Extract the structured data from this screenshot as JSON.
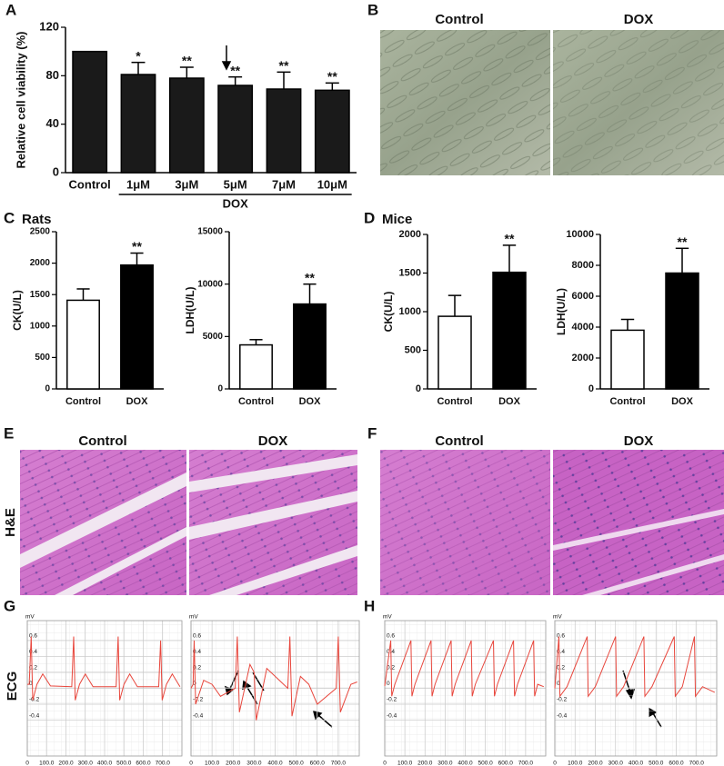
{
  "panels": [
    {
      "letter": "A"
    },
    {
      "letter": "B",
      "titles": [
        "Control",
        "DOX"
      ]
    },
    {
      "letter": "C",
      "title": "Rats"
    },
    {
      "letter": "D",
      "title": "Mice"
    },
    {
      "letter": "E",
      "titles": [
        "Control",
        "DOX"
      ],
      "side_label": "H&E"
    },
    {
      "letter": "F",
      "titles": [
        "Control",
        "DOX"
      ]
    },
    {
      "letter": "G",
      "side_label": "ECG"
    },
    {
      "letter": "H"
    }
  ],
  "chart_data": [
    {
      "type": "bar",
      "y_label": "Relative cell viability (%)",
      "categories": [
        "Control",
        "1μM",
        "3μM",
        "5μM",
        "7μM",
        "10μM"
      ],
      "values": [
        100,
        81,
        78,
        72,
        69,
        68
      ],
      "errors": [
        null,
        10,
        9,
        7,
        14,
        6
      ],
      "significance": [
        null,
        "*",
        "**",
        "**",
        "**",
        "**"
      ],
      "group_label": "DOX",
      "colors": [
        "#1a1a1a",
        "#1a1a1a",
        "#1a1a1a",
        "#1a1a1a",
        "#1a1a1a",
        "#1a1a1a"
      ],
      "ylim": [
        0,
        120
      ],
      "yticks": [
        0,
        40,
        80,
        120
      ]
    },
    {
      "type": "bar",
      "y_label": "CK(U/L)",
      "categories": [
        "Control",
        "DOX"
      ],
      "values": [
        1410,
        1970
      ],
      "errors": [
        180,
        190
      ],
      "significance": [
        null,
        "**"
      ],
      "colors": [
        "#ffffff",
        "#000000"
      ],
      "ylim": [
        0,
        2500
      ],
      "yticks": [
        0,
        500,
        1000,
        1500,
        2000,
        2500
      ]
    },
    {
      "type": "bar",
      "y_label": "LDH(U/L)",
      "categories": [
        "Control",
        "DOX"
      ],
      "values": [
        4200,
        8100
      ],
      "errors": [
        500,
        1900
      ],
      "significance": [
        null,
        "**"
      ],
      "colors": [
        "#ffffff",
        "#000000"
      ],
      "ylim": [
        0,
        15000
      ],
      "yticks": [
        0,
        5000,
        10000,
        15000
      ]
    },
    {
      "type": "bar",
      "y_label": "CK(U/L)",
      "categories": [
        "Control",
        "DOX"
      ],
      "values": [
        940,
        1510
      ],
      "errors": [
        270,
        350
      ],
      "significance": [
        null,
        "**"
      ],
      "colors": [
        "#ffffff",
        "#000000"
      ],
      "ylim": [
        0,
        2000
      ],
      "yticks": [
        0,
        500,
        1000,
        1500,
        2000
      ]
    },
    {
      "type": "bar",
      "y_label": "LDH(U/L)",
      "categories": [
        "Control",
        "DOX"
      ],
      "values": [
        3800,
        7500
      ],
      "errors": [
        700,
        1600
      ],
      "significance": [
        null,
        "**"
      ],
      "colors": [
        "#ffffff",
        "#000000"
      ],
      "ylim": [
        0,
        10000
      ],
      "yticks": [
        0,
        2000,
        4000,
        6000,
        8000,
        10000
      ]
    },
    {
      "type": "line",
      "y_label": "mV",
      "grid": true,
      "xlim": [
        0,
        800
      ],
      "ylim": [
        -0.85,
        0.85
      ],
      "yticks": [
        -0.4,
        -0.2,
        0,
        0.2,
        0.4,
        0.6
      ],
      "xticks": [
        0,
        {
          "value": 100,
          "label": "100.0"
        },
        {
          "value": 200,
          "label": "200.0"
        },
        {
          "value": 300,
          "label": "300.0"
        },
        {
          "value": 400,
          "label": "400.0"
        },
        {
          "value": 500,
          "label": "500.0"
        },
        {
          "value": 600,
          "label": "600.0"
        },
        {
          "value": 700,
          "label": "700.0"
        }
      ],
      "x": [
        0,
        10,
        20,
        28,
        50,
        80,
        120,
        230,
        240,
        248,
        270,
        300,
        340,
        460,
        470,
        478,
        500,
        530,
        570,
        680,
        690,
        698,
        720,
        750,
        790
      ],
      "series": [
        {
          "color": "#e8463c",
          "values": [
            0.05,
            0.05,
            0.65,
            -0.15,
            0.05,
            0.18,
            0.03,
            0.02,
            0.65,
            -0.15,
            0.05,
            0.18,
            0.02,
            0.02,
            0.65,
            -0.15,
            0.05,
            0.18,
            0.02,
            0.02,
            0.6,
            -0.15,
            0.05,
            0.18,
            0.02
          ]
        }
      ]
    },
    {
      "type": "line",
      "y_label": "mV",
      "grid": true,
      "xlim": [
        0,
        800
      ],
      "ylim": [
        -0.85,
        0.85
      ],
      "yticks": [
        -0.4,
        -0.2,
        0,
        0.2,
        0.4,
        0.6
      ],
      "xticks": [
        0,
        {
          "value": 100,
          "label": "100.0"
        },
        {
          "value": 200,
          "label": "200.0"
        },
        {
          "value": 300,
          "label": "300.0"
        },
        {
          "value": 400,
          "label": "400.0"
        },
        {
          "value": 500,
          "label": "500.0"
        },
        {
          "value": 600,
          "label": "600.0"
        },
        {
          "value": 700,
          "label": "700.0"
        }
      ],
      "x": [
        0,
        10,
        15,
        22,
        60,
        100,
        140,
        210,
        220,
        230,
        280,
        300,
        310,
        360,
        460,
        470,
        480,
        520,
        560,
        600,
        690,
        700,
        710,
        760,
        790
      ],
      "series": [
        {
          "color": "#e8463c",
          "values": [
            0,
            0.05,
            0.6,
            -0.2,
            0.1,
            0.05,
            -0.1,
            0,
            0.65,
            -0.3,
            0.3,
            0.2,
            -0.4,
            0.25,
            0,
            0.65,
            -0.35,
            0.15,
            0.05,
            -0.2,
            0,
            0.65,
            -0.3,
            0.05,
            0.08
          ]
        }
      ]
    },
    {
      "type": "line",
      "y_label": "mV",
      "grid": true,
      "xlim": [
        0,
        800
      ],
      "ylim": [
        -0.85,
        0.85
      ],
      "yticks": [
        -0.4,
        -0.2,
        0,
        0.2,
        0.4,
        0.6
      ],
      "xticks": [
        0,
        {
          "value": 100,
          "label": "100.0"
        },
        {
          "value": 200,
          "label": "200.0"
        },
        {
          "value": 300,
          "label": "300.0"
        },
        {
          "value": 400,
          "label": "400.0"
        },
        {
          "value": 500,
          "label": "500.0"
        },
        {
          "value": 600,
          "label": "600.0"
        },
        {
          "value": 700,
          "label": "700.0"
        }
      ],
      "x": [
        0,
        30,
        35,
        50,
        130,
        135,
        150,
        230,
        235,
        250,
        330,
        335,
        350,
        430,
        435,
        450,
        540,
        545,
        560,
        640,
        645,
        660,
        740,
        745,
        760,
        790
      ],
      "series": [
        {
          "color": "#e8463c",
          "values": [
            0.03,
            0.6,
            -0.1,
            0.05,
            0.6,
            -0.1,
            0.05,
            0.6,
            -0.1,
            0.05,
            0.6,
            -0.1,
            0.05,
            0.6,
            -0.1,
            0.05,
            0.6,
            -0.1,
            0.05,
            0.6,
            -0.1,
            0.05,
            0.6,
            -0.1,
            0.05,
            0.02
          ]
        }
      ]
    },
    {
      "type": "line",
      "y_label": "mV",
      "grid": true,
      "xlim": [
        0,
        800
      ],
      "ylim": [
        -0.85,
        0.85
      ],
      "yticks": [
        -0.4,
        -0.2,
        0,
        0.2,
        0.4,
        0.6
      ],
      "xticks": [
        0,
        {
          "value": 100,
          "label": "100.0"
        },
        {
          "value": 200,
          "label": "200.0"
        },
        {
          "value": 300,
          "label": "300.0"
        },
        {
          "value": 400,
          "label": "400.0"
        },
        {
          "value": 500,
          "label": "500.0"
        },
        {
          "value": 600,
          "label": "600.0"
        },
        {
          "value": 700,
          "label": "700.0"
        }
      ],
      "x": [
        0,
        20,
        25,
        60,
        160,
        165,
        200,
        300,
        305,
        340,
        440,
        445,
        480,
        590,
        595,
        630,
        690,
        695,
        730,
        790
      ],
      "series": [
        {
          "color": "#e8463c",
          "values": [
            0,
            0.65,
            -0.1,
            0.02,
            0.65,
            -0.1,
            0.02,
            0.65,
            -0.1,
            0.02,
            0.65,
            -0.1,
            0.02,
            0.65,
            -0.1,
            0.02,
            0.65,
            -0.1,
            0.02,
            -0.05
          ]
        }
      ]
    }
  ]
}
